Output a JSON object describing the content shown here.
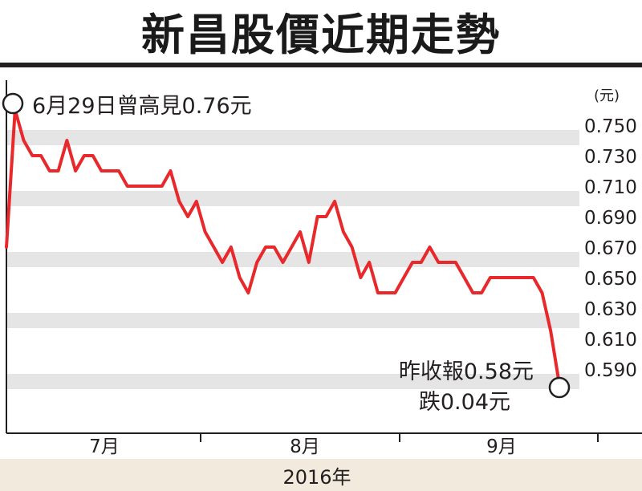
{
  "header": {
    "title": "新昌股價近期走勢"
  },
  "chart_data": {
    "type": "line",
    "title": "新昌股價近期走勢",
    "xlabel": "2016年",
    "ylabel": "(元)",
    "ylim": [
      0.58,
      0.76
    ],
    "yticks": [
      "0.750",
      "0.730",
      "0.710",
      "0.690",
      "0.670",
      "0.650",
      "0.630",
      "0.610",
      "0.590"
    ],
    "month_labels": [
      "7月",
      "8月",
      "9月"
    ],
    "year_label": "2016年",
    "unit_label": "(元)",
    "series": [
      {
        "color": "#e8282b",
        "values": [
          0.67,
          0.76,
          0.74,
          0.73,
          0.73,
          0.72,
          0.72,
          0.74,
          0.72,
          0.73,
          0.73,
          0.72,
          0.72,
          0.72,
          0.71,
          0.71,
          0.71,
          0.71,
          0.71,
          0.72,
          0.7,
          0.69,
          0.7,
          0.68,
          0.67,
          0.66,
          0.67,
          0.65,
          0.64,
          0.66,
          0.67,
          0.67,
          0.66,
          0.67,
          0.68,
          0.66,
          0.69,
          0.69,
          0.7,
          0.68,
          0.67,
          0.65,
          0.66,
          0.64,
          0.64,
          0.64,
          0.65,
          0.66,
          0.66,
          0.67,
          0.66,
          0.66,
          0.66,
          0.65,
          0.64,
          0.64,
          0.65,
          0.65,
          0.65,
          0.65,
          0.65,
          0.65,
          0.64,
          0.615,
          0.58
        ]
      }
    ],
    "annotations": {
      "high": {
        "text": "6月29日曾高見0.76元",
        "value": 0.76
      },
      "close_line1": "昨收報0.58元",
      "close_line2": "跌0.04元",
      "close_value": 0.58
    },
    "colors": {
      "line": "#e8282b",
      "band": "#e5e5e5",
      "marker_fill": "#ffffff",
      "marker_stroke": "#231f20",
      "footer": "#f2ebdd"
    }
  }
}
